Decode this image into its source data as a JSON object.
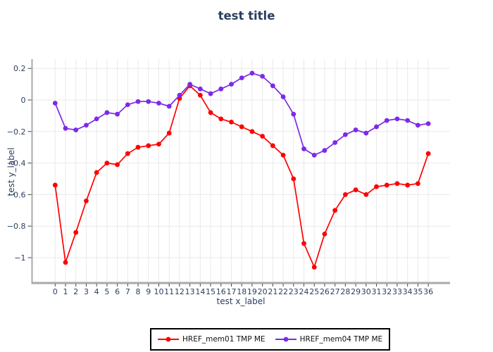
{
  "page": {
    "background": "#ffffff"
  },
  "chart_data": {
    "type": "line",
    "title": "test title",
    "xlabel": "test x_label",
    "ylabel": "test y_label",
    "x": [
      0,
      1,
      2,
      3,
      4,
      5,
      6,
      7,
      8,
      9,
      10,
      11,
      12,
      13,
      14,
      15,
      16,
      17,
      18,
      19,
      20,
      21,
      22,
      23,
      24,
      25,
      26,
      27,
      28,
      29,
      30,
      31,
      32,
      33,
      34,
      35,
      36
    ],
    "series": [
      {
        "name": "HREF_mem01 TMP ME",
        "color": "#ff0000",
        "marker": "circle",
        "values": [
          -0.54,
          -1.03,
          -0.84,
          -0.64,
          -0.46,
          -0.4,
          -0.41,
          -0.34,
          -0.3,
          -0.29,
          -0.28,
          -0.21,
          0.01,
          0.09,
          0.03,
          -0.08,
          -0.12,
          -0.14,
          -0.17,
          -0.2,
          -0.23,
          -0.29,
          -0.35,
          -0.5,
          -0.91,
          -1.06,
          -0.85,
          -0.7,
          -0.6,
          -0.57,
          -0.6,
          -0.55,
          -0.54,
          -0.53,
          -0.54,
          -0.53,
          -0.34
        ]
      },
      {
        "name": "HREF_mem04 TMP ME",
        "color": "#7d2ae8",
        "marker": "circle",
        "values": [
          -0.02,
          -0.18,
          -0.19,
          -0.16,
          -0.12,
          -0.08,
          -0.09,
          -0.03,
          -0.01,
          -0.01,
          -0.02,
          -0.04,
          0.03,
          0.1,
          0.07,
          0.04,
          0.07,
          0.1,
          0.14,
          0.17,
          0.15,
          0.09,
          0.02,
          -0.09,
          -0.31,
          -0.35,
          -0.32,
          -0.27,
          -0.22,
          -0.19,
          -0.21,
          -0.17,
          -0.13,
          -0.12,
          -0.13,
          -0.16,
          -0.15
        ]
      }
    ],
    "ylim": [
      -1.13,
      0.27
    ],
    "xlim": [
      -1,
      37
    ],
    "yticks": [
      0.2,
      0,
      -0.2,
      -0.4,
      -0.6,
      -0.8,
      -1
    ],
    "ytick_labels": [
      "0.2",
      "0",
      "−0.2",
      "−0.4",
      "−0.6",
      "−0.8",
      "−1"
    ],
    "grid": true,
    "legend_position": "bottom-center",
    "text_color": "#2a3f5f",
    "grid_color": "#e9e9e9",
    "axis_color": "#a9a9a9",
    "tick_color": "#444444"
  }
}
